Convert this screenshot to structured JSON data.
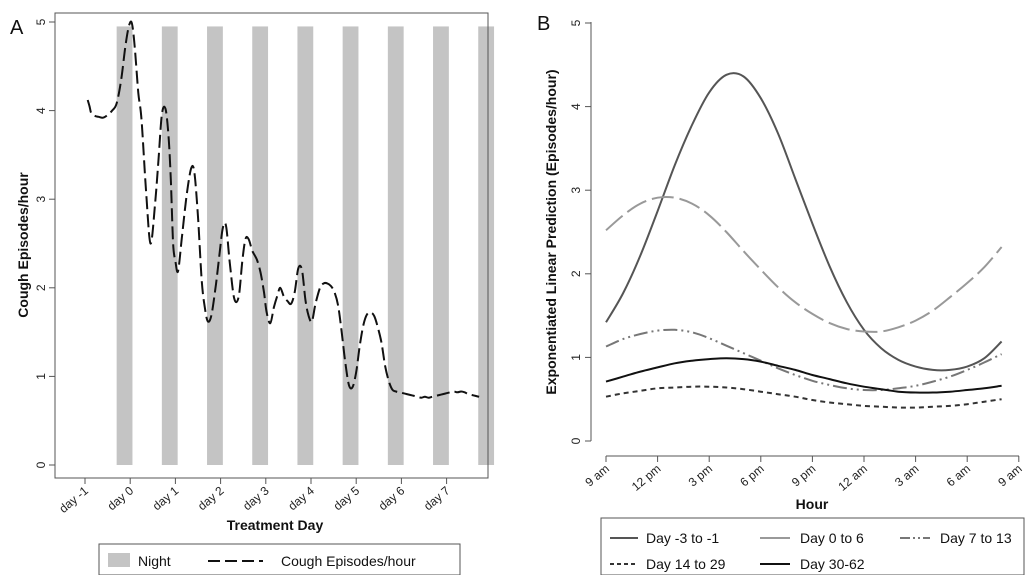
{
  "chart_data": [
    {
      "panel_label": "A",
      "type": "line",
      "xlabel": "Treatment Day",
      "ylabel": "Cough Episodes/hour",
      "ylim": [
        0,
        5
      ],
      "yticks": [
        0,
        1,
        2,
        3,
        4,
        5
      ],
      "xlim": [
        -1,
        8
      ],
      "xticks": [
        {
          "x": -1,
          "label": "day -1"
        },
        {
          "x": 0,
          "label": "day 0"
        },
        {
          "x": 1,
          "label": "day 1"
        },
        {
          "x": 2,
          "label": "day 2"
        },
        {
          "x": 3,
          "label": "day 3"
        },
        {
          "x": 4,
          "label": "day 4"
        },
        {
          "x": 5,
          "label": "day 5"
        },
        {
          "x": 6,
          "label": "day 6"
        },
        {
          "x": 7,
          "label": "day 7"
        }
      ],
      "night_bands": [
        [
          -0.3,
          0.05
        ],
        [
          0.7,
          1.05
        ],
        [
          1.7,
          2.05
        ],
        [
          2.7,
          3.05
        ],
        [
          3.7,
          4.05
        ],
        [
          4.7,
          5.05
        ],
        [
          5.7,
          6.05
        ],
        [
          6.7,
          7.05
        ],
        [
          7.7,
          8.05
        ]
      ],
      "grid": false,
      "legend_position": "bottom",
      "legend": [
        {
          "name": "Night",
          "kind": "band",
          "color": "#c4c4c4"
        },
        {
          "name": "Cough Episodes/hour",
          "kind": "dashed-line",
          "color": "#111111"
        }
      ],
      "series": [
        {
          "name": "Cough Episodes/hour",
          "x": [
            -0.94,
            -0.9,
            -0.86,
            -0.78,
            -0.7,
            -0.6,
            -0.5,
            -0.4,
            -0.3,
            -0.2,
            -0.1,
            -0.02,
            0.04,
            0.1,
            0.18,
            0.25,
            0.35,
            0.45,
            0.55,
            0.62,
            0.7,
            0.78,
            0.85,
            0.9,
            0.95,
            1.0,
            1.06,
            1.15,
            1.25,
            1.35,
            1.42,
            1.5,
            1.58,
            1.65,
            1.72,
            1.8,
            1.9,
            1.98,
            2.05,
            2.12,
            2.2,
            2.3,
            2.4,
            2.48,
            2.55,
            2.62,
            2.7,
            2.8,
            2.88,
            2.96,
            3.02,
            3.1,
            3.18,
            3.26,
            3.32,
            3.4,
            3.48,
            3.56,
            3.64,
            3.72,
            3.8,
            3.88,
            3.95,
            4.02,
            4.1,
            4.2,
            4.28,
            4.36,
            4.44,
            4.52,
            4.6,
            4.68,
            4.76,
            4.84,
            4.92,
            5.0,
            5.08,
            5.16,
            5.24,
            5.32,
            5.4,
            5.48,
            5.56,
            5.64,
            5.72,
            5.8,
            5.88,
            5.96,
            6.04,
            6.12,
            6.2,
            6.28,
            6.36,
            6.44,
            6.52,
            6.6,
            6.68,
            6.76,
            6.84,
            6.92,
            7.0,
            7.08,
            7.16,
            7.24,
            7.32,
            7.4,
            7.48,
            7.56,
            7.64,
            7.72
          ],
          "values": [
            4.12,
            4.05,
            3.97,
            3.94,
            3.93,
            3.92,
            3.95,
            4.0,
            4.08,
            4.35,
            4.75,
            4.97,
            4.98,
            4.72,
            4.2,
            3.9,
            3.1,
            2.5,
            2.95,
            3.4,
            3.95,
            4.02,
            3.7,
            3.2,
            2.5,
            2.3,
            2.19,
            2.6,
            3.05,
            3.35,
            3.3,
            2.8,
            2.1,
            1.78,
            1.62,
            1.7,
            2.05,
            2.4,
            2.68,
            2.7,
            2.3,
            1.88,
            1.9,
            2.3,
            2.55,
            2.55,
            2.42,
            2.32,
            2.18,
            1.95,
            1.72,
            1.6,
            1.78,
            1.92,
            2.0,
            1.9,
            1.85,
            1.82,
            1.95,
            2.22,
            2.2,
            1.85,
            1.68,
            1.62,
            1.82,
            2.0,
            2.05,
            2.05,
            2.02,
            1.95,
            1.8,
            1.5,
            1.15,
            0.9,
            0.88,
            1.05,
            1.35,
            1.58,
            1.7,
            1.72,
            1.68,
            1.55,
            1.38,
            1.12,
            0.95,
            0.85,
            0.83,
            0.82,
            0.81,
            0.8,
            0.79,
            0.78,
            0.77,
            0.76,
            0.77,
            0.76,
            0.77,
            0.78,
            0.79,
            0.8,
            0.81,
            0.82,
            0.83,
            0.82,
            0.83,
            0.82,
            0.8,
            0.79,
            0.78,
            0.77
          ]
        }
      ]
    },
    {
      "panel_label": "B",
      "type": "line",
      "xlabel": "Hour",
      "ylabel": "Exponentiated Linear Prediction (Episodes/hour)",
      "ylim": [
        0,
        5
      ],
      "yticks": [
        0,
        1,
        2,
        3,
        4,
        5
      ],
      "xlim": [
        0,
        24
      ],
      "xticks": [
        {
          "x": 0,
          "label": "9 am"
        },
        {
          "x": 3,
          "label": "12 pm"
        },
        {
          "x": 6,
          "label": "3 pm"
        },
        {
          "x": 9,
          "label": "6 pm"
        },
        {
          "x": 12,
          "label": "9 pm"
        },
        {
          "x": 15,
          "label": "12 am"
        },
        {
          "x": 18,
          "label": "3 am"
        },
        {
          "x": 21,
          "label": "6 am"
        },
        {
          "x": 24,
          "label": "9 am"
        }
      ],
      "grid": false,
      "legend_position": "bottom",
      "series": [
        {
          "name": "Day -3 to -1",
          "style": "solid",
          "color": "#555555",
          "x": [
            0,
            1,
            2,
            3,
            4,
            5,
            6,
            7,
            8,
            9,
            10,
            11,
            12,
            13,
            14,
            15,
            16,
            17,
            18,
            19,
            20,
            21,
            22,
            23
          ],
          "values": [
            1.42,
            1.77,
            2.22,
            2.75,
            3.3,
            3.78,
            4.17,
            4.38,
            4.36,
            4.1,
            3.68,
            3.14,
            2.6,
            2.09,
            1.66,
            1.33,
            1.11,
            0.97,
            0.89,
            0.85,
            0.85,
            0.89,
            0.99,
            1.19
          ]
        },
        {
          "name": "Day 0 to 6",
          "style": "long-dash",
          "color": "#999999",
          "x": [
            0,
            1,
            2,
            3,
            4,
            5,
            6,
            7,
            8,
            9,
            10,
            11,
            12,
            13,
            14,
            15,
            16,
            17,
            18,
            19,
            20,
            21,
            22,
            23
          ],
          "values": [
            2.52,
            2.7,
            2.84,
            2.91,
            2.91,
            2.84,
            2.7,
            2.5,
            2.27,
            2.05,
            1.84,
            1.66,
            1.52,
            1.41,
            1.34,
            1.31,
            1.31,
            1.36,
            1.44,
            1.56,
            1.72,
            1.89,
            2.08,
            2.32
          ]
        },
        {
          "name": "Day 7 to 13",
          "style": "dash-dot-dot",
          "color": "#777777",
          "x": [
            0,
            1,
            2,
            3,
            4,
            5,
            6,
            7,
            8,
            9,
            10,
            11,
            12,
            13,
            14,
            15,
            16,
            17,
            18,
            19,
            20,
            21,
            22,
            23
          ],
          "values": [
            1.13,
            1.22,
            1.28,
            1.32,
            1.33,
            1.3,
            1.23,
            1.14,
            1.05,
            0.96,
            0.87,
            0.79,
            0.72,
            0.67,
            0.63,
            0.61,
            0.61,
            0.63,
            0.66,
            0.71,
            0.77,
            0.85,
            0.94,
            1.04
          ]
        },
        {
          "name": "Day 14 to 29",
          "style": "short-dash",
          "color": "#333333",
          "x": [
            0,
            1,
            2,
            3,
            4,
            5,
            6,
            7,
            8,
            9,
            10,
            11,
            12,
            13,
            14,
            15,
            16,
            17,
            18,
            19,
            20,
            21,
            22,
            23
          ],
          "values": [
            0.53,
            0.57,
            0.6,
            0.63,
            0.64,
            0.65,
            0.65,
            0.64,
            0.62,
            0.59,
            0.56,
            0.53,
            0.49,
            0.46,
            0.44,
            0.42,
            0.41,
            0.4,
            0.4,
            0.41,
            0.42,
            0.44,
            0.47,
            0.5
          ]
        },
        {
          "name": "Day 30-62",
          "style": "solid",
          "color": "#111111",
          "x": [
            0,
            1,
            2,
            3,
            4,
            5,
            6,
            7,
            8,
            9,
            10,
            11,
            12,
            13,
            14,
            15,
            16,
            17,
            18,
            19,
            20,
            21,
            22,
            23
          ],
          "values": [
            0.71,
            0.77,
            0.83,
            0.88,
            0.93,
            0.96,
            0.98,
            0.99,
            0.98,
            0.95,
            0.9,
            0.85,
            0.79,
            0.74,
            0.69,
            0.65,
            0.62,
            0.59,
            0.58,
            0.58,
            0.59,
            0.61,
            0.63,
            0.66
          ]
        }
      ]
    }
  ]
}
